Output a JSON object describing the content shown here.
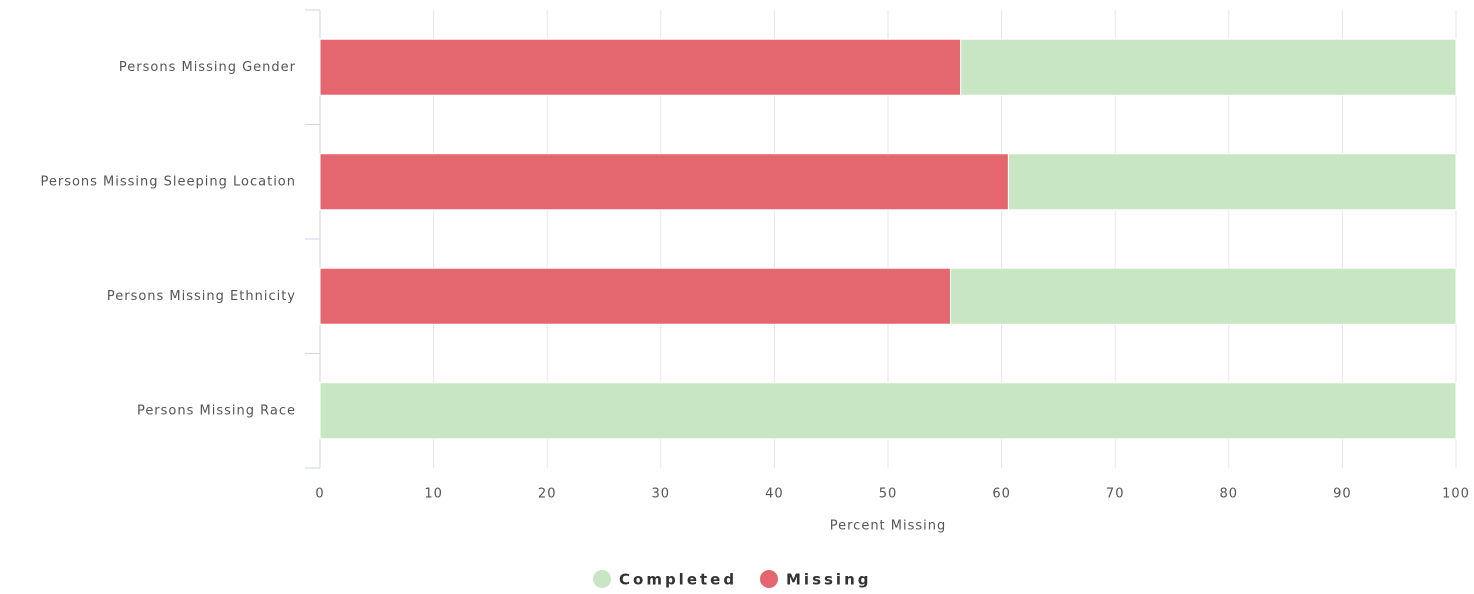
{
  "chart_data": {
    "type": "stacked_barh",
    "categories": [
      "Persons Missing Gender",
      "Persons Missing Sleeping Location",
      "Persons Missing Ethnicity",
      "Persons Missing Race"
    ],
    "series": [
      {
        "name": "Completed",
        "color": "#c8e6c4",
        "values": [
          43.6,
          39.4,
          44.5,
          100
        ]
      },
      {
        "name": "Missing",
        "color": "#e4666f",
        "values": [
          56.4,
          60.6,
          55.5,
          0
        ]
      }
    ],
    "xlabel": "Percent Missing",
    "xlim": [
      0,
      100
    ],
    "xticks": [
      0,
      10,
      20,
      30,
      40,
      50,
      60,
      70,
      80,
      90,
      100
    ],
    "grid": true,
    "legend": "bottom"
  }
}
